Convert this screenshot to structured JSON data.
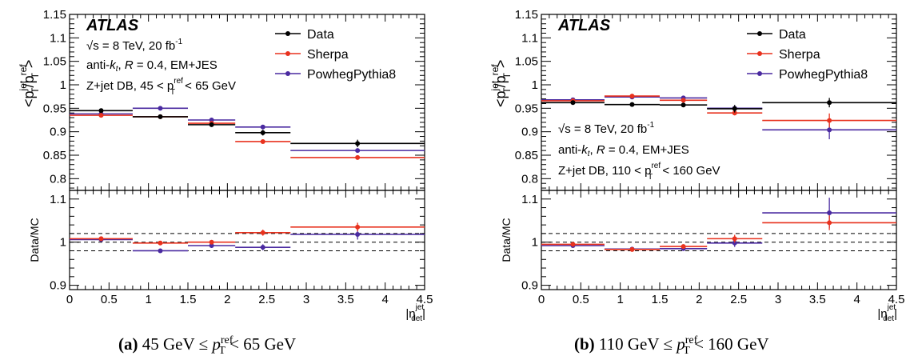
{
  "colors": {
    "data": "#000000",
    "sherpa": "#e8321e",
    "powheg": "#4a2aa0"
  },
  "chart_data": [
    {
      "type": "scatter",
      "atlas_label": "ATLAS",
      "info": {
        "line1": "√s = 8 TeV, 20 fb",
        "line1_sup": "-1",
        "line2_a": "anti-",
        "line2_k": "k",
        "line2_t": "t",
        "line2_b": ", ",
        "line2_R": "R",
        "line2_c": " = 0.4, EM+JES",
        "line3_a": "Z+jet DB, 45 < p",
        "line3_sup": "ref",
        "line3_sub": "T",
        "line3_b": " < 65 GeV"
      },
      "legend": [
        "Data",
        "Sherpa",
        "PowhegPythia8"
      ],
      "ylabel": "<p /p >",
      "ylabel_parts": {
        "open": "<p",
        "num_sup": "jet",
        "num_sub": "T",
        "slash": "/p",
        "den_sup": "ref",
        "den_sub": "T",
        "close": ">"
      },
      "ratio_ylabel": "Data/MC",
      "xlabel_parts": {
        "main": "|η",
        "sup": "jet",
        "sub": "det",
        "close": "|"
      },
      "xlim": [
        0,
        4.5
      ],
      "ylim": [
        0.775,
        1.15
      ],
      "ratio_ylim": [
        0.89,
        1.12
      ],
      "xticks": [
        "0",
        "0.5",
        "1",
        "1.5",
        "2",
        "2.5",
        "3",
        "3.5",
        "4",
        "4.5"
      ],
      "yticks": [
        "0.8",
        "0.85",
        "0.9",
        "0.95",
        "1",
        "1.05",
        "1.1",
        "1.15"
      ],
      "ratio_yticks": [
        "0.9",
        "1",
        "1.1"
      ],
      "bins": [
        [
          0,
          0.8
        ],
        [
          0.8,
          1.5
        ],
        [
          1.5,
          2.1
        ],
        [
          2.1,
          2.8
        ],
        [
          2.8,
          4.5
        ]
      ],
      "centers": [
        0.4,
        1.15,
        1.8,
        2.45,
        3.65
      ],
      "series": [
        {
          "name": "Data",
          "values": [
            0.945,
            0.932,
            0.915,
            0.898,
            0.875
          ],
          "errors": [
            0.003,
            0.003,
            0.004,
            0.006,
            0.008
          ]
        },
        {
          "name": "Sherpa",
          "values": [
            0.935,
            0.932,
            0.918,
            0.879,
            0.845
          ],
          "errors": [
            0.002,
            0.002,
            0.003,
            0.003,
            0.004
          ]
        },
        {
          "name": "PowhegPythia8",
          "values": [
            0.938,
            0.95,
            0.925,
            0.91,
            0.86
          ],
          "errors": [
            0.002,
            0.002,
            0.003,
            0.004,
            0.004
          ]
        }
      ],
      "ratio_series": [
        {
          "name": "Sherpa",
          "values": [
            1.008,
            0.998,
            1.0,
            1.022,
            1.035
          ],
          "errors": [
            0.004,
            0.004,
            0.005,
            0.007,
            0.01
          ]
        },
        {
          "name": "PowhegPythia8",
          "values": [
            1.006,
            0.98,
            0.992,
            0.988,
            1.018
          ],
          "errors": [
            0.004,
            0.004,
            0.005,
            0.007,
            0.012
          ]
        }
      ],
      "dashed_lines": [
        0.98,
        1.0,
        1.02
      ],
      "caption": {
        "label": "(a)",
        "text_a": "45 GeV ≤ ",
        "p": "p",
        "sup": "ref",
        "sub": "T",
        "text_b": " < 65 GeV"
      }
    },
    {
      "type": "scatter",
      "atlas_label": "ATLAS",
      "info": {
        "line1": "√s = 8 TeV, 20 fb",
        "line1_sup": "-1",
        "line2_a": "anti-",
        "line2_k": "k",
        "line2_t": "t",
        "line2_b": ", ",
        "line2_R": "R",
        "line2_c": " = 0.4, EM+JES",
        "line3_a": "Z+jet DB, 110 < p",
        "line3_sup": "ref",
        "line3_sub": "T",
        "line3_b": " < 160 GeV"
      },
      "legend": [
        "Data",
        "Sherpa",
        "PowhegPythia8"
      ],
      "ylabel": "<p /p >",
      "ylabel_parts": {
        "open": "<p",
        "num_sup": "jet",
        "num_sub": "T",
        "slash": "/p",
        "den_sup": "ref",
        "den_sub": "T",
        "close": ">"
      },
      "ratio_ylabel": "Data/MC",
      "xlabel_parts": {
        "main": "|η",
        "sup": "jet",
        "sub": "det",
        "close": "|"
      },
      "xlim": [
        0,
        4.5
      ],
      "ylim": [
        0.775,
        1.15
      ],
      "ratio_ylim": [
        0.89,
        1.12
      ],
      "xticks": [
        "0",
        "0.5",
        "1",
        "1.5",
        "2",
        "2.5",
        "3",
        "3.5",
        "4",
        "4.5"
      ],
      "yticks": [
        "0.8",
        "0.85",
        "0.9",
        "0.95",
        "1",
        "1.05",
        "1.1",
        "1.15"
      ],
      "ratio_yticks": [
        "0.9",
        "1",
        "1.1"
      ],
      "bins": [
        [
          0,
          0.8
        ],
        [
          0.8,
          1.5
        ],
        [
          1.5,
          2.1
        ],
        [
          2.1,
          2.8
        ],
        [
          2.8,
          4.5
        ]
      ],
      "centers": [
        0.4,
        1.15,
        1.8,
        2.45,
        3.65
      ],
      "series": [
        {
          "name": "Data",
          "values": [
            0.962,
            0.958,
            0.957,
            0.949,
            0.962
          ],
          "errors": [
            0.003,
            0.003,
            0.004,
            0.008,
            0.01
          ]
        },
        {
          "name": "Sherpa",
          "values": [
            0.966,
            0.976,
            0.967,
            0.94,
            0.924
          ],
          "errors": [
            0.002,
            0.003,
            0.004,
            0.005,
            0.015
          ]
        },
        {
          "name": "PowhegPythia8",
          "values": [
            0.968,
            0.974,
            0.972,
            0.95,
            0.904
          ],
          "errors": [
            0.002,
            0.003,
            0.004,
            0.005,
            0.02
          ]
        }
      ],
      "ratio_series": [
        {
          "name": "Sherpa",
          "values": [
            0.995,
            0.983,
            0.99,
            1.008,
            1.045
          ],
          "errors": [
            0.004,
            0.004,
            0.005,
            0.009,
            0.017
          ]
        },
        {
          "name": "PowhegPythia8",
          "values": [
            0.992,
            0.984,
            0.985,
            0.998,
            1.068
          ],
          "errors": [
            0.004,
            0.004,
            0.005,
            0.009,
            0.035
          ]
        }
      ],
      "dashed_lines": [
        0.98,
        1.0,
        1.02
      ],
      "caption": {
        "label": "(b)",
        "text_a": "110 GeV ≤ ",
        "p": "p",
        "sup": "ref",
        "sub": "T",
        "text_b": " < 160 GeV"
      }
    }
  ]
}
